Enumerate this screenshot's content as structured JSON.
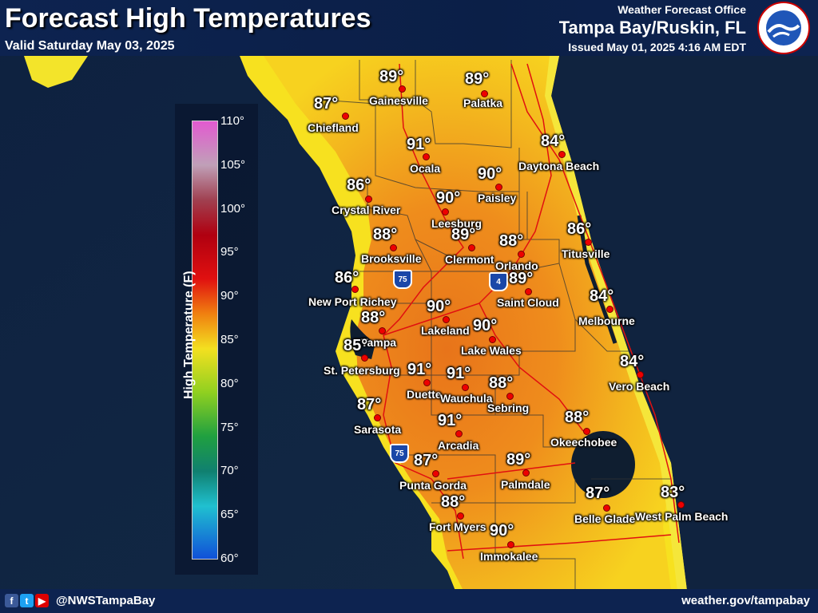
{
  "header": {
    "title": "Forecast High Temperatures",
    "valid": "Valid Saturday May 03, 2025",
    "office_line1": "Weather Forecast Office",
    "office_line2": "Tampa Bay/Ruskin, FL",
    "issued": "Issued May 01, 2025 4:16 AM EDT",
    "logo_icon": "nws-logo-icon"
  },
  "footer": {
    "handle": "@NWSTampaBay",
    "website": "weather.gov/tampabay",
    "icons": [
      "facebook-icon",
      "twitter-icon",
      "youtube-icon"
    ]
  },
  "legend": {
    "title": "High Temperature (F)",
    "ticks": [
      "110°",
      "105°",
      "100°",
      "95°",
      "90°",
      "85°",
      "80°",
      "75°",
      "70°",
      "65°",
      "60°"
    ]
  },
  "highways": [
    "75",
    "4",
    "75"
  ],
  "cities": [
    {
      "name": "Gainesville",
      "temp": "89°"
    },
    {
      "name": "Palatka",
      "temp": "89°"
    },
    {
      "name": "Chiefland",
      "temp": "87°"
    },
    {
      "name": "Ocala",
      "temp": "91°"
    },
    {
      "name": "Daytona Beach",
      "temp": "84°"
    },
    {
      "name": "Paisley",
      "temp": "90°"
    },
    {
      "name": "Crystal River",
      "temp": "86°"
    },
    {
      "name": "Leesburg",
      "temp": "90°"
    },
    {
      "name": "Brooksville",
      "temp": "88°"
    },
    {
      "name": "Clermont",
      "temp": "89°"
    },
    {
      "name": "Orlando",
      "temp": "88°"
    },
    {
      "name": "Titusville",
      "temp": "86°"
    },
    {
      "name": "New Port Richey",
      "temp": "86°"
    },
    {
      "name": "Saint Cloud",
      "temp": "89°"
    },
    {
      "name": "Lakeland",
      "temp": "90°"
    },
    {
      "name": "Melbourne",
      "temp": "84°"
    },
    {
      "name": "Tampa",
      "temp": "88°"
    },
    {
      "name": "Lake Wales",
      "temp": "90°"
    },
    {
      "name": "St. Petersburg",
      "temp": "85°"
    },
    {
      "name": "Duette",
      "temp": "91°"
    },
    {
      "name": "Wauchula",
      "temp": "91°"
    },
    {
      "name": "Vero Beach",
      "temp": "84°"
    },
    {
      "name": "Sebring",
      "temp": "88°"
    },
    {
      "name": "Sarasota",
      "temp": "87°"
    },
    {
      "name": "Arcadia",
      "temp": "91°"
    },
    {
      "name": "Okeechobee",
      "temp": "88°"
    },
    {
      "name": "Punta Gorda",
      "temp": "87°"
    },
    {
      "name": "Palmdale",
      "temp": "89°"
    },
    {
      "name": "Belle Glade",
      "temp": "87°"
    },
    {
      "name": "West Palm Beach",
      "temp": "83°"
    },
    {
      "name": "Fort Myers",
      "temp": "88°"
    },
    {
      "name": "Immokalee",
      "temp": "90°"
    }
  ]
}
